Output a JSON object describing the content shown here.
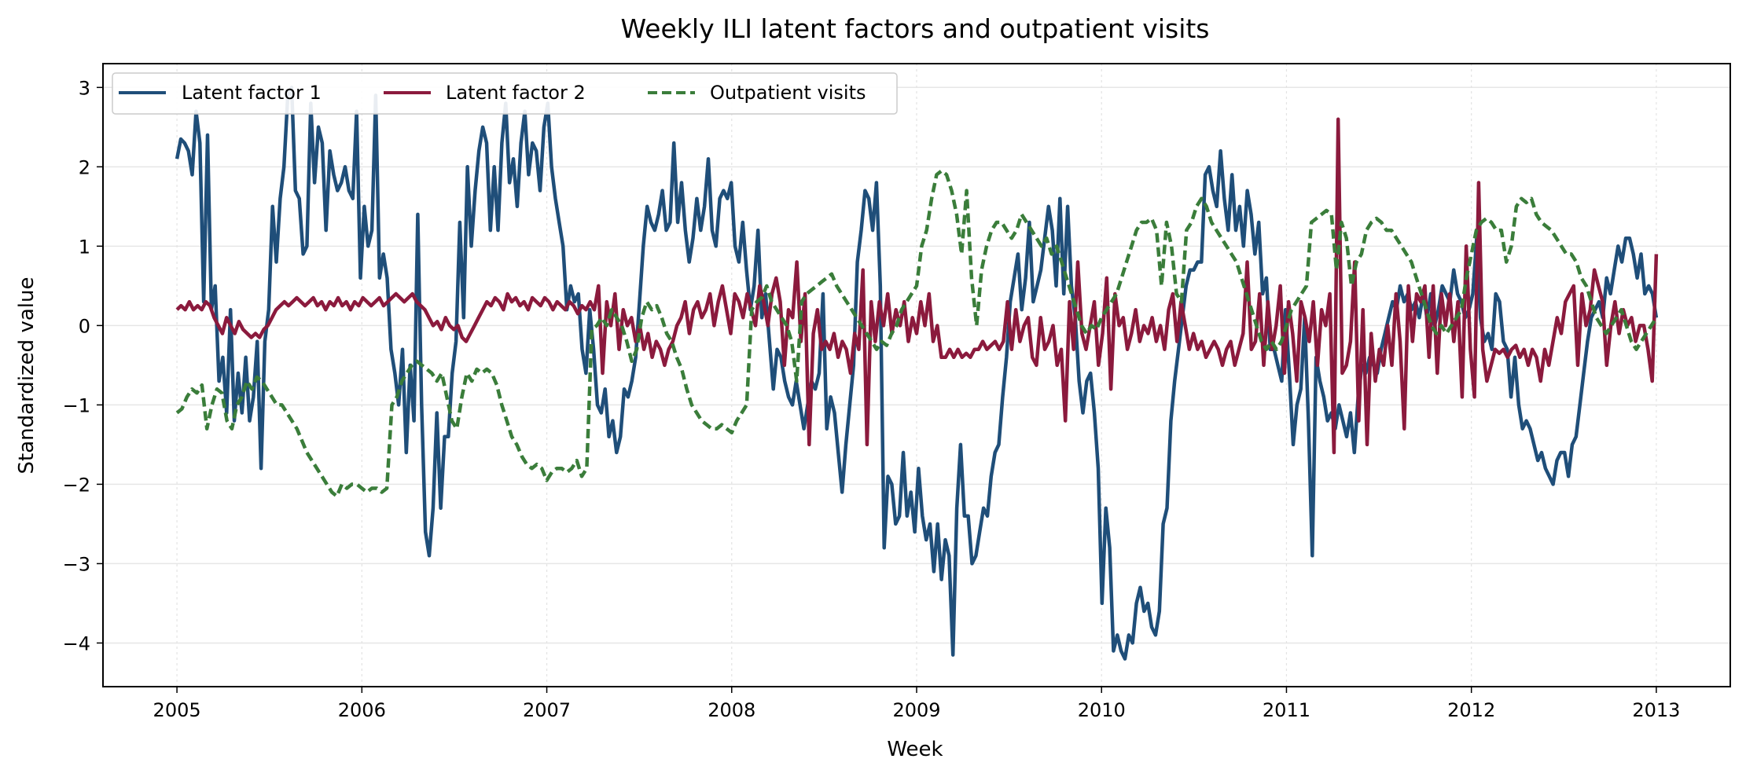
{
  "chart_data": {
    "type": "line",
    "title": "Weekly ILI latent factors and outpatient visits",
    "xlabel": "Week",
    "ylabel": "Standardized value",
    "xlim": [
      2004.6,
      2013.4
    ],
    "ylim": [
      -4.55,
      3.3
    ],
    "x_ticks": [
      "2005",
      "2006",
      "2007",
      "2008",
      "2009",
      "2010",
      "2011",
      "2012",
      "2013"
    ],
    "y_ticks": [
      "3",
      "2",
      "1",
      "0",
      "−1",
      "−2",
      "−3",
      "−4"
    ],
    "y_tick_values": [
      3,
      2,
      1,
      0,
      -1,
      -2,
      -3,
      -4
    ],
    "grid": true,
    "legend_placement": "upper-left",
    "x_step_weeks": 0.0192,
    "series": [
      {
        "name": "Latent factor 1",
        "color": "#1f4e79",
        "style": "solid",
        "x_start": 2005.0,
        "values": [
          2.1,
          2.35,
          2.3,
          2.2,
          1.9,
          2.7,
          2.3,
          0.3,
          2.4,
          0.2,
          0.5,
          -0.7,
          -0.4,
          -1.1,
          0.2,
          -1.2,
          -0.6,
          -1.1,
          -0.4,
          -1.2,
          -0.9,
          -0.2,
          -1.8,
          -0.2,
          0.2,
          1.5,
          0.8,
          1.6,
          2.0,
          2.9,
          3.0,
          1.7,
          1.6,
          0.9,
          1.0,
          2.8,
          1.8,
          2.5,
          2.3,
          1.2,
          2.2,
          1.9,
          1.7,
          1.8,
          2.0,
          1.7,
          1.6,
          2.7,
          0.6,
          1.5,
          1.0,
          1.2,
          2.9,
          0.6,
          0.9,
          0.6,
          -0.3,
          -0.6,
          -1.0,
          -0.3,
          -1.6,
          -0.5,
          -1.2,
          1.4,
          -1.0,
          -2.6,
          -2.9,
          -2.3,
          -1.1,
          -2.3,
          -1.4,
          -1.4,
          -0.6,
          -0.2,
          1.3,
          0.1,
          2.0,
          1.0,
          1.7,
          2.2,
          2.5,
          2.3,
          1.2,
          2.0,
          1.2,
          2.3,
          2.8,
          1.8,
          2.1,
          1.5,
          2.3,
          2.7,
          1.9,
          2.3,
          2.2,
          1.7,
          2.5,
          2.8,
          2.0,
          1.6,
          1.3,
          1.0,
          0.2,
          0.5,
          0.3,
          0.4,
          -0.3,
          -0.6,
          0.2,
          -0.3,
          -1.0,
          -1.1,
          -0.8,
          -1.4,
          -1.2,
          -1.6,
          -1.4,
          -0.8,
          -0.9,
          -0.7,
          -0.4,
          0.3,
          1.0,
          1.5,
          1.3,
          1.2,
          1.4,
          1.7,
          1.2,
          1.3,
          2.3,
          1.3,
          1.8,
          1.2,
          0.8,
          1.1,
          1.6,
          1.2,
          1.5,
          2.1,
          1.2,
          1.0,
          1.6,
          1.7,
          1.6,
          1.8,
          1.0,
          0.8,
          1.3,
          0.7,
          0.2,
          0.5,
          1.2,
          0.1,
          0.4,
          -0.2,
          -0.8,
          -0.3,
          -0.4,
          -0.7,
          -0.9,
          -1.0,
          -0.7,
          -1.0,
          -1.3,
          -1.0,
          -0.7,
          -0.8,
          -0.6,
          0.4,
          -1.3,
          -0.9,
          -1.1,
          -1.6,
          -2.1,
          -1.5,
          -1.0,
          -0.5,
          0.8,
          1.2,
          1.7,
          1.6,
          1.2,
          1.8,
          0.5,
          -2.8,
          -1.9,
          -2.0,
          -2.5,
          -2.4,
          -1.6,
          -2.4,
          -2.1,
          -2.6,
          -1.8,
          -2.4,
          -2.7,
          -2.5,
          -3.1,
          -2.5,
          -3.2,
          -2.7,
          -2.9,
          -4.15,
          -2.3,
          -1.5,
          -2.4,
          -2.4,
          -3.0,
          -2.9,
          -2.6,
          -2.3,
          -2.4,
          -1.9,
          -1.6,
          -1.5,
          -0.9,
          -0.4,
          0.3,
          0.6,
          0.9,
          0.2,
          0.6,
          1.3,
          0.3,
          0.5,
          0.7,
          1.1,
          1.5,
          1.2,
          0.5,
          1.6,
          0.4,
          1.5,
          0.5,
          0.1,
          -0.7,
          -1.1,
          -0.7,
          -0.6,
          -1.1,
          -1.8,
          -3.5,
          -2.3,
          -2.8,
          -4.1,
          -3.9,
          -4.1,
          -4.2,
          -3.9,
          -4.0,
          -3.5,
          -3.3,
          -3.6,
          -3.5,
          -3.8,
          -3.9,
          -3.6,
          -2.5,
          -2.3,
          -1.2,
          -0.7,
          -0.3,
          0.1,
          0.5,
          0.7,
          0.7,
          0.8,
          0.8,
          1.9,
          2.0,
          1.7,
          1.5,
          2.2,
          1.6,
          1.2,
          1.9,
          1.2,
          1.5,
          1.0,
          1.7,
          1.4,
          0.9,
          1.3,
          0.4,
          0.6,
          -0.3,
          -0.3,
          -0.5,
          -0.7,
          0.2,
          -0.6,
          -1.5,
          -1.0,
          -0.8,
          0.1,
          -1.2,
          -2.9,
          -0.4,
          -0.7,
          -0.9,
          -1.2,
          -1.1,
          -1.3,
          -1.0,
          -1.2,
          -1.4,
          -1.1,
          -1.6,
          -0.9,
          -0.5,
          -0.6,
          -0.4,
          -0.5,
          -0.6,
          -0.3,
          -0.1,
          0.1,
          0.3,
          0.2,
          0.5,
          0.3,
          0.4,
          0.2,
          0.3,
          0.1,
          0.4,
          0.1,
          0.4,
          0.0,
          0.2,
          0.5,
          0.4,
          0.3,
          0.7,
          0.4,
          0.3,
          0.1,
          0.2,
          0.4,
          1.1,
          0.1,
          -0.2,
          -0.1,
          -0.3,
          0.4,
          0.3,
          -0.2,
          -0.3,
          -0.9,
          -0.4,
          -1.0,
          -1.3,
          -1.2,
          -1.3,
          -1.5,
          -1.7,
          -1.6,
          -1.8,
          -1.9,
          -2.0,
          -1.7,
          -1.6,
          -1.6,
          -1.9,
          -1.5,
          -1.4,
          -1.0,
          -0.6,
          -0.2,
          0.1,
          0.2,
          0.3,
          0.1,
          0.6,
          0.4,
          0.7,
          1.0,
          0.8,
          1.1,
          1.1,
          0.9,
          0.6,
          0.9,
          0.4,
          0.5,
          0.4,
          0.1
        ]
      },
      {
        "name": "Latent factor 2",
        "color": "#8b1a3d",
        "style": "solid",
        "x_start": 2005.0,
        "values": [
          0.2,
          0.25,
          0.2,
          0.3,
          0.2,
          0.25,
          0.2,
          0.3,
          0.25,
          0.1,
          0.0,
          -0.1,
          0.1,
          0.0,
          -0.1,
          0.05,
          -0.05,
          -0.1,
          -0.15,
          -0.1,
          -0.15,
          -0.05,
          0.0,
          0.1,
          0.2,
          0.25,
          0.3,
          0.25,
          0.3,
          0.35,
          0.3,
          0.25,
          0.3,
          0.35,
          0.25,
          0.3,
          0.2,
          0.3,
          0.25,
          0.35,
          0.25,
          0.3,
          0.2,
          0.3,
          0.25,
          0.35,
          0.3,
          0.25,
          0.3,
          0.35,
          0.25,
          0.3,
          0.35,
          0.4,
          0.35,
          0.3,
          0.35,
          0.4,
          0.3,
          0.25,
          0.2,
          0.1,
          0.0,
          0.05,
          -0.05,
          0.1,
          0.0,
          -0.05,
          0.0,
          -0.15,
          -0.2,
          -0.1,
          0.0,
          0.1,
          0.2,
          0.3,
          0.25,
          0.35,
          0.3,
          0.2,
          0.4,
          0.3,
          0.35,
          0.25,
          0.3,
          0.2,
          0.35,
          0.3,
          0.25,
          0.35,
          0.3,
          0.2,
          0.3,
          0.25,
          0.2,
          0.3,
          0.25,
          0.15,
          0.25,
          0.2,
          0.3,
          0.2,
          0.5,
          -0.6,
          0.3,
          0.0,
          0.4,
          -0.3,
          0.2,
          0.0,
          0.1,
          -0.2,
          0.0,
          -0.3,
          -0.1,
          -0.4,
          -0.2,
          -0.3,
          -0.5,
          -0.3,
          -0.2,
          0.0,
          0.1,
          0.3,
          -0.1,
          0.2,
          0.3,
          0.1,
          0.2,
          0.4,
          0.0,
          0.3,
          0.5,
          0.2,
          -0.1,
          0.4,
          0.3,
          0.1,
          0.4,
          0.2,
          0.0,
          0.5,
          0.3,
          0.0,
          0.4,
          0.6,
          0.3,
          -0.5,
          0.2,
          0.1,
          0.8,
          -0.2,
          0.4,
          -1.5,
          -0.1,
          0.2,
          -0.3,
          -0.2,
          -0.3,
          -0.1,
          -0.4,
          -0.2,
          -0.3,
          -0.6,
          -0.1,
          -0.3,
          0.7,
          -1.5,
          0.3,
          -0.2,
          0.3,
          0.0,
          0.4,
          -0.1,
          0.2,
          0.0,
          0.3,
          -0.2,
          0.1,
          -0.1,
          0.3,
          0.0,
          0.4,
          -0.2,
          0.0,
          -0.4,
          -0.4,
          -0.3,
          -0.4,
          -0.3,
          -0.4,
          -0.35,
          -0.4,
          -0.3,
          -0.3,
          -0.2,
          -0.3,
          -0.25,
          -0.2,
          -0.3,
          -0.2,
          0.3,
          -0.3,
          0.2,
          -0.2,
          0.0,
          0.1,
          -0.4,
          -0.5,
          0.1,
          -0.3,
          -0.2,
          0.0,
          -0.5,
          -0.3,
          -1.2,
          0.3,
          -0.3,
          0.8,
          -0.1,
          -0.3,
          0.0,
          0.3,
          -0.5,
          -0.1,
          0.6,
          -0.8,
          0.4,
          0.0,
          0.1,
          -0.3,
          -0.1,
          0.2,
          -0.2,
          0.0,
          -0.1,
          0.1,
          -0.2,
          0.0,
          -0.3,
          0.2,
          0.4,
          -0.2,
          0.3,
          0.0,
          -0.3,
          -0.1,
          -0.3,
          -0.2,
          -0.4,
          -0.3,
          -0.2,
          -0.3,
          -0.5,
          -0.3,
          -0.2,
          -0.5,
          -0.3,
          -0.1,
          0.8,
          -0.3,
          -0.2,
          0.4,
          -0.5,
          0.3,
          -0.3,
          0.0,
          0.5,
          -0.6,
          0.3,
          -0.1,
          -0.7,
          0.3,
          0.1,
          -0.2,
          0.3,
          -0.5,
          0.2,
          0.0,
          0.4,
          -1.6,
          2.6,
          -0.6,
          -0.5,
          -0.2,
          0.8,
          -1.2,
          0.2,
          -1.5,
          -0.1,
          -0.7,
          -0.3,
          -0.5,
          0.0,
          -0.5,
          0.4,
          -0.2,
          -1.3,
          0.5,
          -0.2,
          0.4,
          0.3,
          0.5,
          -0.4,
          0.5,
          -0.6,
          0.4,
          0.0,
          0.4,
          -0.2,
          0.3,
          -0.9,
          1.0,
          -0.3,
          -0.9,
          1.8,
          -0.3,
          -0.7,
          -0.5,
          -0.3,
          -0.35,
          -0.3,
          -0.4,
          -0.3,
          -0.25,
          -0.4,
          -0.3,
          -0.5,
          -0.3,
          -0.4,
          -0.7,
          -0.3,
          -0.5,
          -0.2,
          0.1,
          -0.1,
          0.3,
          0.4,
          0.5,
          -0.5,
          0.4,
          0.0,
          0.2,
          0.7,
          0.5,
          0.3,
          -0.5,
          0.0,
          0.3,
          -0.1,
          0.2,
          0.0,
          0.1,
          -0.2,
          0.0,
          0.0,
          -0.3,
          -0.7,
          0.9
        ]
      },
      {
        "name": "Outpatient visits",
        "color": "#3a7d3a",
        "style": "dashed",
        "x_start": 2005.0,
        "values": [
          -1.1,
          -1.05,
          -0.9,
          -0.8,
          -0.85,
          -0.75,
          -1.3,
          -1.0,
          -0.8,
          -0.85,
          -1.2,
          -1.3,
          -1.0,
          -0.9,
          -0.7,
          -0.8,
          -0.65,
          -0.7,
          -0.8,
          -0.9,
          -1.0,
          -1.0,
          -1.1,
          -1.2,
          -1.3,
          -1.45,
          -1.6,
          -1.7,
          -1.8,
          -1.9,
          -2.0,
          -2.1,
          -2.15,
          -2.0,
          -2.05,
          -2.0,
          -2.0,
          -2.05,
          -2.1,
          -2.05,
          -2.05,
          -2.1,
          -2.05,
          -1.0,
          -0.9,
          -0.7,
          -0.6,
          -0.5,
          -0.45,
          -0.5,
          -0.55,
          -0.6,
          -0.7,
          -0.6,
          -0.9,
          -1.2,
          -1.3,
          -0.9,
          -0.6,
          -0.7,
          -0.55,
          -0.6,
          -0.55,
          -0.6,
          -0.75,
          -1.0,
          -1.2,
          -1.4,
          -1.5,
          -1.65,
          -1.75,
          -1.8,
          -1.75,
          -1.8,
          -1.95,
          -1.85,
          -1.8,
          -1.8,
          -1.85,
          -1.8,
          -1.7,
          -1.9,
          -1.8,
          -0.05,
          0.0,
          0.1,
          0.0,
          0.2,
          0.1,
          0.0,
          -0.2,
          -0.45,
          -0.3,
          0.1,
          0.3,
          0.2,
          0.25,
          0.1,
          -0.1,
          -0.2,
          -0.4,
          -0.55,
          -0.8,
          -1.0,
          -1.1,
          -1.2,
          -1.25,
          -1.3,
          -1.3,
          -1.25,
          -1.3,
          -1.35,
          -1.2,
          -1.1,
          -1.0,
          0.2,
          0.3,
          0.35,
          0.5,
          0.3,
          0.2,
          0.1,
          0.0,
          -0.2,
          -0.7,
          0.3,
          0.4,
          0.45,
          0.5,
          0.55,
          0.6,
          0.65,
          0.5,
          0.4,
          0.3,
          0.2,
          0.1,
          0.0,
          -0.1,
          -0.2,
          -0.3,
          -0.2,
          -0.25,
          -0.1,
          0.0,
          0.2,
          0.3,
          0.4,
          0.5,
          1.0,
          1.2,
          1.6,
          1.9,
          1.95,
          1.9,
          1.7,
          1.4,
          0.9,
          1.7,
          0.6,
          0.0,
          0.7,
          1.0,
          1.2,
          1.3,
          1.3,
          1.2,
          1.1,
          1.2,
          1.4,
          1.3,
          1.2,
          1.1,
          1.0,
          1.1,
          0.9,
          1.0,
          0.8,
          0.6,
          0.4,
          0.2,
          0.0,
          -0.1,
          0.0,
          -0.05,
          0.1,
          0.2,
          0.3,
          0.4,
          0.6,
          0.8,
          1.0,
          1.2,
          1.3,
          1.3,
          1.35,
          1.2,
          0.5,
          1.3,
          1.0,
          0.4,
          0.3,
          1.2,
          1.3,
          1.5,
          1.6,
          1.5,
          1.3,
          1.2,
          1.1,
          1.0,
          0.9,
          0.8,
          0.6,
          0.4,
          0.2,
          0.0,
          -0.2,
          -0.3,
          -0.2,
          -0.3,
          -0.2,
          0.0,
          0.2,
          0.3,
          0.4,
          0.5,
          1.3,
          1.35,
          1.4,
          1.45,
          1.4,
          0.7,
          1.3,
          1.1,
          0.5,
          0.8,
          0.9,
          1.2,
          1.3,
          1.35,
          1.3,
          1.2,
          1.2,
          1.1,
          1.0,
          0.9,
          0.8,
          0.6,
          0.4,
          0.2,
          0.0,
          -0.1,
          0.0,
          -0.1,
          0.0,
          0.1,
          0.2,
          0.6,
          0.9,
          1.2,
          1.3,
          1.35,
          1.3,
          1.2,
          1.2,
          0.8,
          1.0,
          1.5,
          1.6,
          1.55,
          1.6,
          1.4,
          1.3,
          1.25,
          1.2,
          1.1,
          1.0,
          0.9,
          0.9,
          0.8,
          0.6,
          0.5,
          0.3,
          0.1,
          0.0,
          -0.1,
          0.0,
          0.1,
          0.2,
          0.0,
          -0.2,
          -0.3,
          -0.2,
          -0.1,
          0.0,
          0.1
        ]
      }
    ]
  }
}
